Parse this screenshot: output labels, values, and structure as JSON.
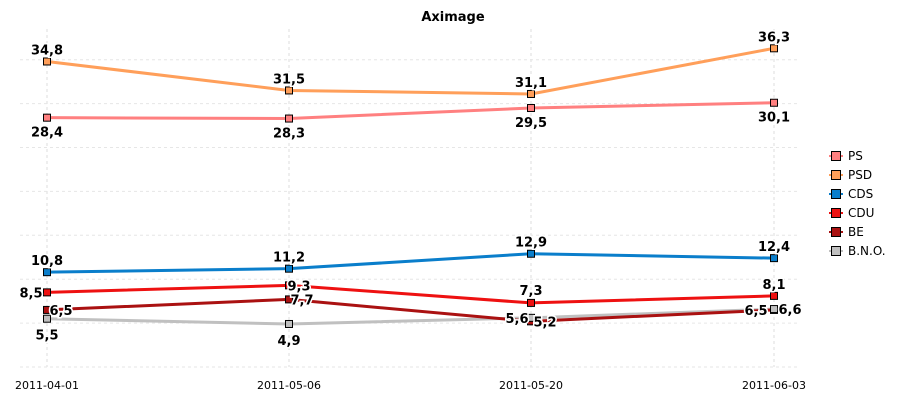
{
  "chart_data": {
    "type": "line",
    "title": "Aximage",
    "categories": [
      "2011-04-01",
      "2011-05-06",
      "2011-05-20",
      "2011-06-03"
    ],
    "ylim": [
      0,
      38.5
    ],
    "grid": true,
    "legend": "right",
    "series": [
      {
        "name": "PS",
        "color": "#ff8080",
        "values": [
          28.4,
          28.3,
          29.5,
          30.1
        ],
        "labels": [
          "28,4",
          "28,3",
          "29,5",
          "30,1"
        ]
      },
      {
        "name": "PSD",
        "color": "#ff9f5a",
        "values": [
          34.8,
          31.5,
          31.1,
          36.3
        ],
        "labels": [
          "34,8",
          "31,5",
          "31,1",
          "36,3"
        ]
      },
      {
        "name": "CDS",
        "color": "#0a7ecb",
        "values": [
          10.8,
          11.2,
          12.9,
          12.4
        ],
        "labels": [
          "10,8",
          "11,2",
          "12,9",
          "12,4"
        ]
      },
      {
        "name": "CDU",
        "color": "#ee1111",
        "values": [
          8.5,
          9.3,
          7.3,
          8.1
        ],
        "labels": [
          "8,5",
          "9,3",
          "7,3",
          "8,1"
        ]
      },
      {
        "name": "BE",
        "color": "#aa1111",
        "values": [
          6.5,
          7.7,
          5.2,
          6.5
        ],
        "labels": [
          "6,5",
          "7,7",
          "5,2",
          "6,5"
        ]
      },
      {
        "name": "B.N.O.",
        "color": "#c0c0c0",
        "values": [
          5.5,
          4.9,
          5.6,
          6.6
        ],
        "labels": [
          "5,5",
          "4,9",
          "5,6",
          "6,6"
        ]
      }
    ]
  }
}
